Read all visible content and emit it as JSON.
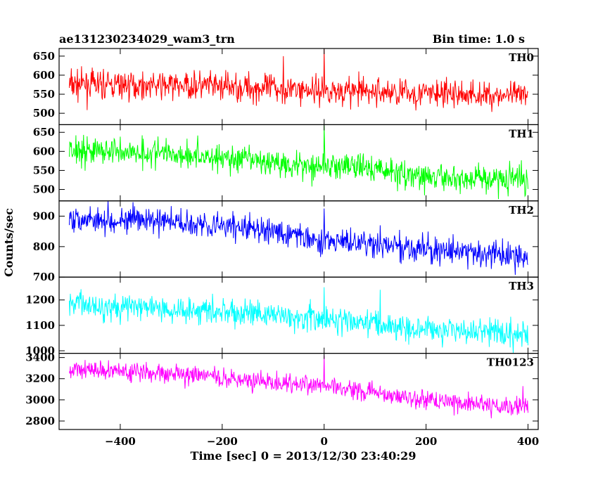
{
  "header": {
    "title": "ae131230234029_wam3_trn",
    "bin_time": "Bin time: 1.0 s"
  },
  "chart_data": {
    "type": "line",
    "title": "ae131230234029_wam3_trn",
    "subtitle": "Bin time: 1.0 s",
    "xlabel": "Time [sec] 0 = 2013/12/30 23:40:29",
    "ylabel": "Counts/sec",
    "xlim": [
      -520,
      420
    ],
    "x_ticks": [
      -400,
      -200,
      0,
      200,
      400
    ],
    "x_tick_labels": [
      "−400",
      "−200",
      "0",
      "200",
      "400"
    ],
    "x_range": [
      -500,
      400
    ],
    "bin_time_s": 1.0,
    "noise_seed": 7,
    "panels": [
      {
        "name": "TH0",
        "color": "#ff0000",
        "ylim": [
          470,
          670
        ],
        "yticks": [
          500,
          550,
          600,
          650
        ],
        "trend": [
          [
            -500,
            575
          ],
          [
            -250,
            572
          ],
          [
            0,
            560
          ],
          [
            200,
            552
          ],
          [
            400,
            545
          ]
        ],
        "noise": 26,
        "spikes": [
          [
            0,
            668
          ],
          [
            -80,
            650
          ]
        ]
      },
      {
        "name": "TH1",
        "color": "#00ff00",
        "ylim": [
          470,
          670
        ],
        "yticks": [
          500,
          550,
          600,
          650
        ],
        "trend": [
          [
            -500,
            605
          ],
          [
            -300,
            595
          ],
          [
            -100,
            570
          ],
          [
            100,
            555
          ],
          [
            200,
            530
          ],
          [
            400,
            528
          ]
        ],
        "noise": 26,
        "spikes": [
          [
            0,
            668
          ]
        ]
      },
      {
        "name": "TH2",
        "color": "#0000ff",
        "ylim": [
          700,
          950
        ],
        "yticks": [
          700,
          800,
          900
        ],
        "trend": [
          [
            -500,
            895
          ],
          [
            -250,
            878
          ],
          [
            -100,
            850
          ],
          [
            0,
            820
          ],
          [
            200,
            790
          ],
          [
            400,
            765
          ]
        ],
        "noise": 30,
        "spikes": [
          [
            0,
            925
          ],
          [
            110,
            870
          ]
        ]
      },
      {
        "name": "TH3",
        "color": "#00ffff",
        "ylim": [
          990,
          1290
        ],
        "yticks": [
          1000,
          1100,
          1200
        ],
        "trend": [
          [
            -500,
            1185
          ],
          [
            -250,
            1160
          ],
          [
            0,
            1125
          ],
          [
            200,
            1090
          ],
          [
            400,
            1060
          ]
        ],
        "noise": 38,
        "spikes": [
          [
            0,
            1250
          ],
          [
            110,
            1240
          ]
        ]
      },
      {
        "name": "TH0123",
        "color": "#ff00ff",
        "ylim": [
          2720,
          3440
        ],
        "yticks": [
          2800,
          3000,
          3200,
          3400
        ],
        "trend": [
          [
            -500,
            3300
          ],
          [
            -250,
            3230
          ],
          [
            0,
            3130
          ],
          [
            100,
            3070
          ],
          [
            200,
            3000
          ],
          [
            400,
            2930
          ]
        ],
        "noise": 65,
        "spikes": [
          [
            0,
            3420
          ],
          [
            390,
            3130
          ]
        ]
      }
    ]
  }
}
